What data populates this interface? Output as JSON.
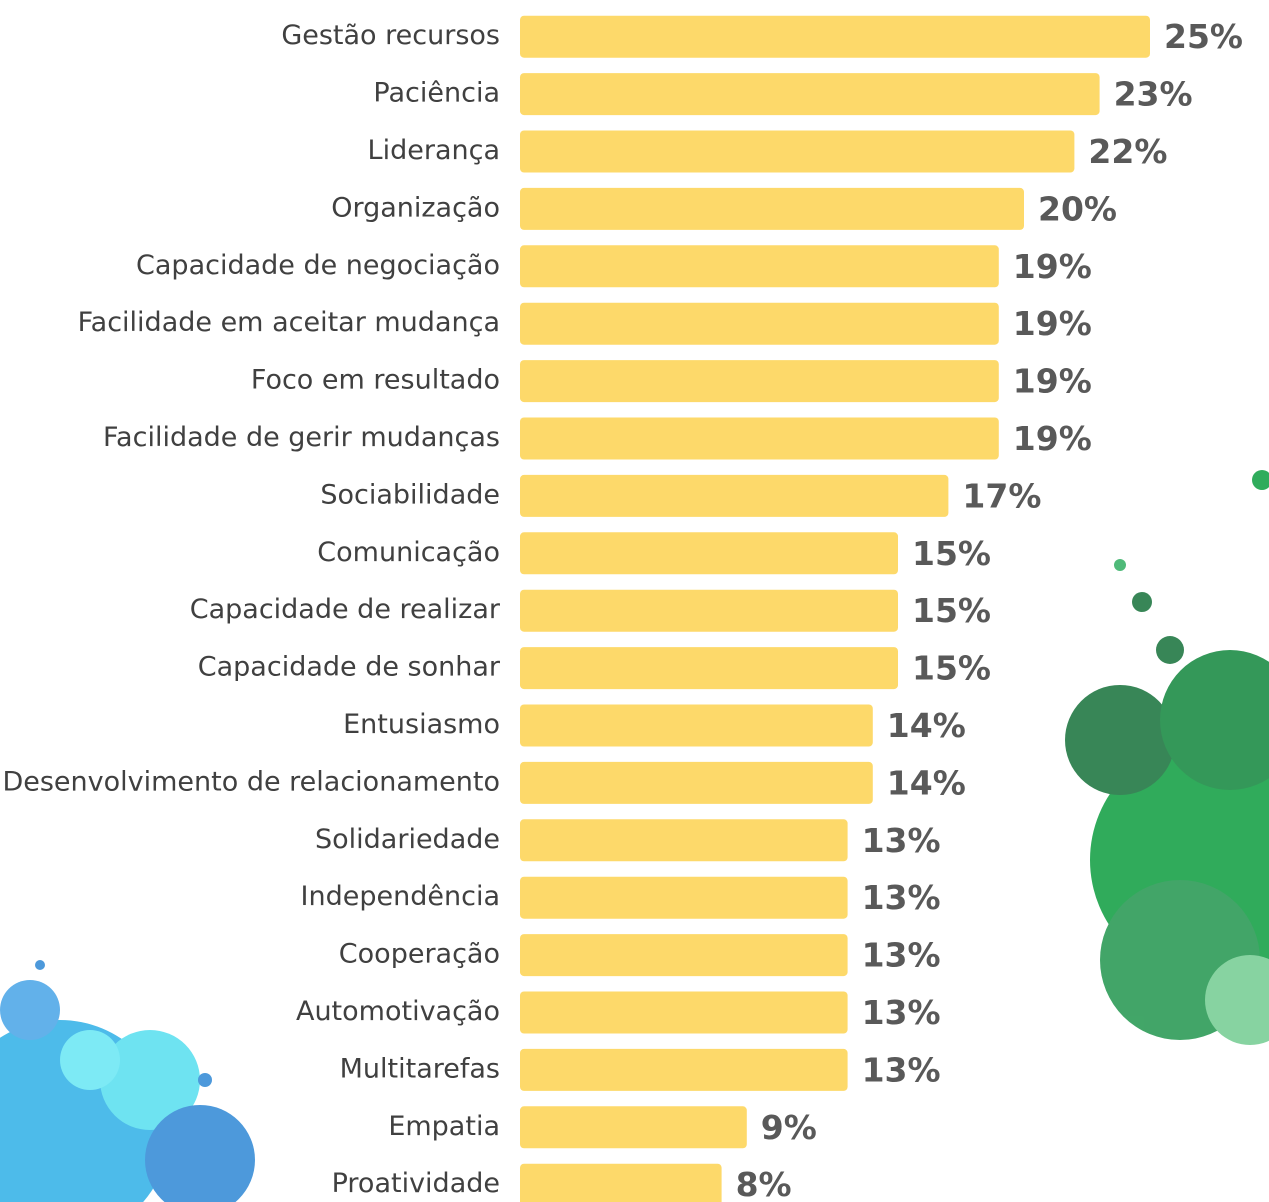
{
  "chart_data": {
    "type": "barh",
    "categories": [
      "Gestão recursos",
      "Paciência",
      "Liderança",
      "Organização",
      "Capacidade de negociação",
      "Facilidade em aceitar mudança",
      "Foco em resultado",
      "Facilidade de gerir mudanças",
      "Sociabilidade",
      "Comunicação",
      "Capacidade de realizar",
      "Capacidade de sonhar",
      "Entusiasmo",
      "Desenvolvimento de relacionamento",
      "Solidariedade",
      "Independência",
      "Cooperação",
      "Automotivação",
      "Multitarefas",
      "Empatia",
      "Proatividade"
    ],
    "values": [
      25,
      23,
      22,
      20,
      19,
      19,
      19,
      19,
      17,
      15,
      15,
      15,
      14,
      14,
      13,
      13,
      13,
      13,
      13,
      9,
      8
    ],
    "value_labels": [
      "25%",
      "23%",
      "22%",
      "20%",
      "19%",
      "19%",
      "19%",
      "19%",
      "17%",
      "15%",
      "15%",
      "15%",
      "14%",
      "14%",
      "13%",
      "13%",
      "13%",
      "13%",
      "13%",
      "9%",
      "8%"
    ],
    "color": "#fdd96a",
    "xlim": [
      0,
      25
    ]
  }
}
